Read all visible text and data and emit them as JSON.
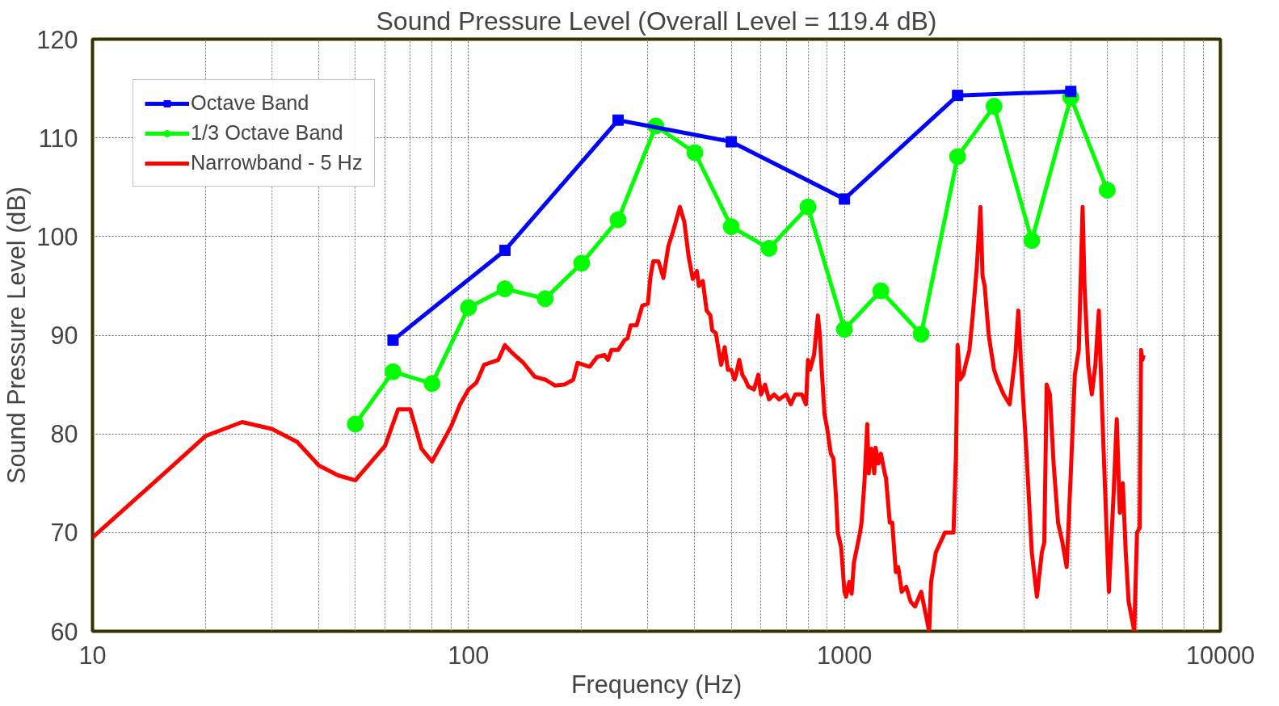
{
  "chart_data": {
    "type": "line",
    "title": "Sound Pressure Level (Overall Level = 119.4 dB)",
    "xlabel": "Frequency (Hz)",
    "ylabel": "Sound Pressure Level (dB)",
    "log": "x",
    "xlim": [
      10,
      10000
    ],
    "xticks": [
      10,
      100,
      1000,
      10000
    ],
    "ylim": [
      60,
      120
    ],
    "yticks": [
      60,
      70,
      80,
      90,
      100,
      110,
      120
    ],
    "grid": true,
    "legend": "top left",
    "series": [
      {
        "name": "Octave Band",
        "color": "#0000ff",
        "marker": "square",
        "x": [
          63,
          125,
          250,
          500,
          1000,
          2000,
          4000
        ],
        "values": [
          89.5,
          98.6,
          111.8,
          109.6,
          103.8,
          114.3,
          114.7
        ]
      },
      {
        "name": "1/3 Octave Band",
        "color": "#00ff00",
        "marker": "circle",
        "x": [
          50,
          63,
          80,
          100,
          125,
          160,
          200,
          250,
          315,
          400,
          500,
          630,
          800,
          1000,
          1250,
          1600,
          2000,
          2500,
          3150,
          4000,
          5000
        ],
        "values": [
          81,
          86.3,
          85.1,
          92.8,
          94.7,
          93.7,
          97.3,
          101.7,
          111.2,
          108.5,
          101,
          98.8,
          103,
          90.6,
          94.5,
          90.1,
          108.1,
          113.2,
          99.6,
          114.1,
          104.7
        ]
      },
      {
        "name": "Narrowband - 5 Hz",
        "color": "#ff0000",
        "marker": "none",
        "x": [
          10,
          15,
          20,
          25,
          30,
          35,
          40,
          45,
          50,
          60,
          65,
          70,
          75,
          80,
          90,
          95,
          100,
          105,
          110,
          120,
          125,
          130,
          140,
          150,
          160,
          170,
          180,
          190,
          195,
          210,
          220,
          230,
          235,
          240,
          250,
          260,
          265,
          270,
          280,
          290,
          300,
          305,
          310,
          320,
          330,
          340,
          350,
          365,
          375,
          385,
          395,
          405,
          410,
          420,
          430,
          440,
          445,
          455,
          465,
          470,
          480,
          490,
          500,
          510,
          515,
          525,
          535,
          545,
          555,
          575,
          590,
          600,
          615,
          630,
          650,
          670,
          700,
          720,
          740,
          770,
          790,
          800,
          810,
          830,
          850,
          860,
          870,
          885,
          900,
          920,
          935,
          950,
          960,
          980,
          1000,
          1010,
          1030,
          1045,
          1060,
          1080,
          1100,
          1110,
          1130,
          1150,
          1160,
          1180,
          1200,
          1210,
          1230,
          1250,
          1280,
          1290,
          1320,
          1340,
          1370,
          1390,
          1420,
          1460,
          1500,
          1540,
          1600,
          1680,
          1700,
          1750,
          1850,
          1950,
          1980,
          2000,
          2030,
          2070,
          2100,
          2150,
          2200,
          2250,
          2300,
          2330,
          2360,
          2420,
          2500,
          2550,
          2650,
          2750,
          2850,
          2900,
          2950,
          3050,
          3150,
          3250,
          3350,
          3400,
          3450,
          3520,
          3600,
          3700,
          3800,
          3900,
          4000,
          4100,
          4200,
          4300,
          4350,
          4450,
          4550,
          4650,
          4750,
          4850,
          5050,
          5200,
          5300,
          5400,
          5500,
          5600,
          5700,
          5900,
          6000,
          6100,
          6150,
          6200,
          6250
        ],
        "values": [
          69.5,
          75.5,
          79.8,
          81.2,
          80.5,
          79.2,
          76.8,
          75.8,
          75.3,
          78.8,
          82.5,
          82.5,
          78.5,
          77.2,
          80.8,
          83,
          84.5,
          85.2,
          87,
          87.5,
          89,
          88.3,
          87.2,
          85.8,
          85.5,
          84.9,
          85,
          85.5,
          87.2,
          86.8,
          87.8,
          88,
          87.5,
          88.5,
          88.5,
          89.5,
          89.7,
          91,
          91,
          93,
          93.2,
          96,
          97.5,
          97.5,
          95.8,
          99,
          100.5,
          103,
          101.5,
          98,
          95.7,
          96.5,
          95,
          95.5,
          92.5,
          92,
          90.5,
          90.2,
          88,
          87,
          88.8,
          86.5,
          86.5,
          85.5,
          86,
          87.5,
          86,
          85.5,
          84.8,
          84.5,
          86,
          84,
          85,
          83.5,
          84,
          83.5,
          84,
          83,
          84,
          84,
          83,
          87.5,
          86.5,
          88,
          92,
          90,
          86.5,
          82,
          80.5,
          78,
          77.5,
          73.5,
          70,
          68.5,
          64,
          63.5,
          65,
          63.8,
          67,
          68.5,
          70,
          71,
          75,
          81,
          76,
          78.5,
          76,
          78.6,
          77,
          78,
          76,
          75.5,
          71,
          71,
          66,
          66.5,
          64,
          64.5,
          63,
          62.5,
          64,
          60,
          65,
          68,
          70,
          70,
          78,
          89,
          85.5,
          86,
          87,
          88.5,
          92.5,
          97,
          103,
          96,
          95,
          90,
          86.5,
          85.5,
          84,
          83,
          88,
          92.5,
          87,
          78,
          68,
          63.5,
          68,
          69,
          85,
          84,
          77,
          71,
          69,
          66.5,
          76,
          86,
          88.5,
          103,
          95,
          87,
          84,
          87,
          92.5,
          82,
          64,
          74,
          81.5,
          72,
          75,
          68,
          63,
          60,
          70,
          70.5,
          88.5,
          87.5,
          88
        ]
      }
    ]
  }
}
